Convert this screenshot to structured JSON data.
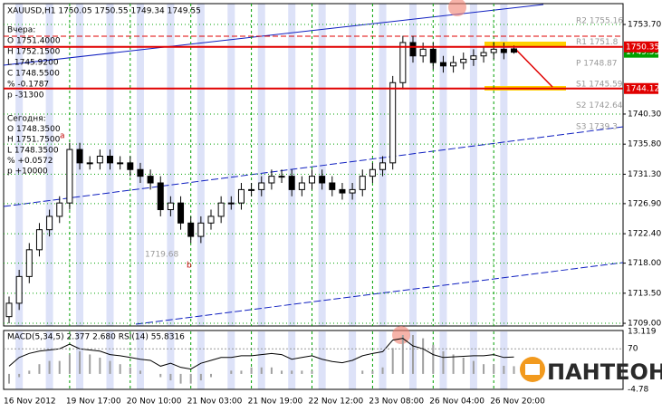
{
  "chart_data": [
    {
      "type": "candlestick",
      "title": "XAUUSD,H1  1750.05 1750.55 1749.34 1749.55",
      "categories": [
        "16 Nov 2012",
        null,
        null,
        null,
        null,
        null,
        "19 Nov 17:00",
        null,
        null,
        null,
        null,
        null,
        "20 Nov 10:00",
        null,
        null,
        null,
        null,
        null,
        "21 Nov 03:00",
        null,
        null,
        null,
        null,
        null,
        "21 Nov 19:00",
        null,
        null,
        null,
        null,
        null,
        "22 Nov 12:00",
        null,
        null,
        null,
        null,
        null,
        "23 Nov 08:00",
        null,
        null,
        null,
        null,
        null,
        "26 Nov 04:00",
        null,
        null,
        null,
        null,
        null,
        "26 Nov 20:00",
        null,
        null
      ],
      "open": [
        1710,
        1712,
        1716,
        1720,
        1723,
        1725,
        1727,
        1735,
        1733,
        1733,
        1734,
        1733,
        1733,
        1732,
        1731,
        1730,
        1726,
        1727,
        1724,
        1722,
        1724,
        1725,
        1727,
        1727,
        1729,
        1729,
        1730,
        1731,
        1731,
        1729,
        1730,
        1731,
        1730,
        1729,
        1728.5,
        1729,
        1731,
        1732,
        1733,
        1745,
        1751,
        1749,
        1750,
        1748,
        1747.5,
        1748,
        1748.5,
        1749,
        1749.5,
        1750,
        1750.05
      ],
      "high": [
        1713,
        1717,
        1721,
        1724,
        1726,
        1728,
        1736,
        1736,
        1734,
        1735,
        1735,
        1734,
        1734,
        1733,
        1732,
        1731,
        1728,
        1728,
        1725,
        1725,
        1726,
        1728,
        1728,
        1730,
        1730,
        1731,
        1732,
        1732,
        1732,
        1731,
        1732,
        1732,
        1731,
        1730,
        1730,
        1732,
        1733,
        1734,
        1746,
        1752,
        1752,
        1751,
        1751,
        1749,
        1749,
        1749.5,
        1750,
        1750.5,
        1751,
        1751,
        1750.55
      ],
      "low": [
        1709,
        1711,
        1715,
        1719,
        1722,
        1724,
        1726,
        1732,
        1732,
        1732,
        1732,
        1732,
        1731,
        1730,
        1729,
        1725,
        1725,
        1723,
        1721,
        1721,
        1723,
        1724,
        1726,
        1726,
        1728,
        1728,
        1729,
        1730,
        1728,
        1728,
        1729,
        1729,
        1728,
        1727.5,
        1727.5,
        1728,
        1730,
        1731,
        1732,
        1744,
        1748,
        1748,
        1747,
        1746.5,
        1746.5,
        1747,
        1747.5,
        1748,
        1748.5,
        1748.5,
        1749.34
      ],
      "close": [
        1712,
        1716,
        1720,
        1723,
        1725,
        1727,
        1735,
        1733,
        1733,
        1734,
        1733,
        1733,
        1732,
        1731,
        1730,
        1726,
        1727,
        1724,
        1722,
        1724,
        1725,
        1727,
        1727,
        1729,
        1729,
        1730,
        1731,
        1731,
        1729,
        1730,
        1731,
        1730,
        1729,
        1728.5,
        1729,
        1731,
        1732,
        1733,
        1745,
        1751,
        1749,
        1750,
        1748,
        1747.5,
        1748,
        1748.5,
        1749,
        1749.5,
        1750,
        1749.5,
        1749.55
      ],
      "ylim": [
        1708.6,
        1756.82
      ],
      "yticks": [
        {
          "value": 1753.7,
          "label": "1753.70"
        },
        {
          "value": 1740.3,
          "label": "1740.30"
        },
        {
          "value": 1735.8,
          "label": "1735.80"
        },
        {
          "value": 1731.3,
          "label": "1731.30"
        },
        {
          "value": 1726.9,
          "label": "1726.90"
        },
        {
          "value": 1722.4,
          "label": "1722.40"
        },
        {
          "value": 1718,
          "label": "1718.00"
        },
        {
          "value": 1713.5,
          "label": "1713.50"
        },
        {
          "value": 1709,
          "label": "1709.00"
        }
      ],
      "levels": [
        {
          "value": 1750.35,
          "label": "1750.35",
          "color": "#e00000"
        },
        {
          "value": 1744.12,
          "label": "1744.12",
          "color": "#e00000"
        }
      ],
      "last_price": {
        "value": 1749.55,
        "label": "1749.55",
        "color": "#00a000"
      },
      "pivots": [
        "R2 1755.16",
        "R1 1751.8",
        "P 1748.87",
        "S1 1745.59",
        "S2 1742.64",
        "S3 1739.3"
      ],
      "info": [
        "Вчера:",
        "O 1751.4000",
        "H 1752.1500",
        "L 1745.9200",
        "C 1748.5500",
        "% -0.1787",
        "p -31300",
        "Сегодня:",
        "O 1748.3500",
        "H 1751.7500",
        "L 1748.3500",
        "% +0.0572",
        "p +10000"
      ],
      "annotations": [
        "a",
        "b",
        "1719.68"
      ],
      "grid": true
    },
    {
      "type": "indicator",
      "title": "MACD(5,34,5) 2.377 2.680 RSI(14) 55.8316",
      "values": [
        -3,
        -1,
        1,
        3,
        4,
        4,
        6,
        7,
        6,
        5,
        4,
        3,
        2,
        1,
        0,
        -1,
        -2,
        -3,
        -3,
        -2,
        -1,
        0,
        1,
        1,
        2,
        2,
        2,
        1,
        1,
        1,
        1,
        0,
        0,
        0,
        0,
        1,
        1,
        2,
        8,
        12,
        12,
        11,
        9,
        7,
        6,
        5,
        4,
        3,
        3,
        2.5,
        2.377
      ],
      "color": "#a0a0a0",
      "ylim": [
        -4.78,
        13.119
      ],
      "yticks": [
        13.119,
        -4.78
      ],
      "line": [
        40,
        55,
        62,
        66,
        68,
        70,
        78,
        70,
        68,
        66,
        60,
        58,
        55,
        52,
        50,
        40,
        45,
        38,
        35,
        45,
        50,
        55,
        55,
        58,
        58,
        60,
        62,
        60,
        52,
        55,
        58,
        52,
        48,
        46,
        50,
        58,
        62,
        65,
        85,
        88,
        75,
        70,
        60,
        55,
        56,
        57,
        58,
        58,
        60,
        55,
        55.8316
      ],
      "line_color": "#000000",
      "y2lim": [
        0,
        100
      ],
      "y2ticks": [
        70
      ]
    },
    {
      "logo": "ПАНТЕОН"
    }
  ]
}
